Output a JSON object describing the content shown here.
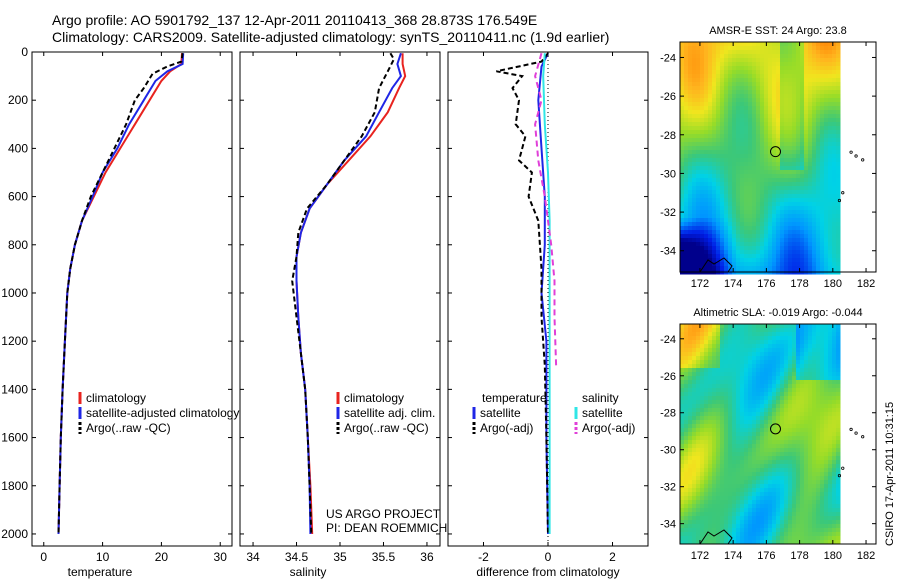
{
  "header": {
    "line1": "Argo profile: AO 5901792_137 12-Apr-2011 20110413_368 28.873S 176.549E",
    "line2": "Climatology: CARS2009. Satellite-adjusted climatology: synTS_20110411.nc (1.9d earlier)"
  },
  "side_text": "CSIRO 17-Apr-2011 10:31:15",
  "colors": {
    "climatology": "#e8231f",
    "satellite": "#1f26e6",
    "argo": "#000000",
    "satellite_salinity": "#2fe6e6",
    "argo_adj_salinity": "#e040d8"
  },
  "chart_data": [
    {
      "id": "temperature",
      "type": "line",
      "xlabel": "temperature",
      "xlim": [
        -2,
        32
      ],
      "ylim": [
        0,
        2050
      ],
      "y_reversed": true,
      "xticks": [
        0,
        10,
        20,
        30
      ],
      "yticks": [
        0,
        200,
        400,
        600,
        800,
        1000,
        1200,
        1400,
        1600,
        1800,
        2000
      ],
      "legend": [
        "climatology",
        "satellite-adjusted climatology",
        "Argo(..raw -QC)"
      ],
      "series": [
        {
          "name": "climatology",
          "color": "#e8231f",
          "dash": "",
          "points": [
            [
              23.5,
              5
            ],
            [
              23.4,
              50
            ],
            [
              21.5,
              80
            ],
            [
              20.0,
              120
            ],
            [
              18.0,
              200
            ],
            [
              15.5,
              300
            ],
            [
              13.0,
              400
            ],
            [
              10.5,
              500
            ],
            [
              8.5,
              600
            ],
            [
              6.5,
              700
            ],
            [
              5.3,
              800
            ],
            [
              4.5,
              900
            ],
            [
              4.0,
              1000
            ],
            [
              3.6,
              1200
            ],
            [
              3.2,
              1400
            ],
            [
              2.9,
              1600
            ],
            [
              2.7,
              1800
            ],
            [
              2.5,
              2000
            ]
          ]
        },
        {
          "name": "satellite-adjusted climatology",
          "color": "#1f26e6",
          "dash": "",
          "points": [
            [
              23.7,
              5
            ],
            [
              23.6,
              50
            ],
            [
              21.0,
              80
            ],
            [
              19.0,
              120
            ],
            [
              17.0,
              200
            ],
            [
              14.5,
              300
            ],
            [
              12.5,
              400
            ],
            [
              10.0,
              500
            ],
            [
              8.3,
              600
            ],
            [
              6.5,
              700
            ],
            [
              5.3,
              800
            ],
            [
              4.5,
              900
            ],
            [
              4.0,
              1000
            ],
            [
              3.6,
              1200
            ],
            [
              3.2,
              1400
            ],
            [
              2.9,
              1600
            ],
            [
              2.7,
              1800
            ],
            [
              2.5,
              2000
            ]
          ]
        },
        {
          "name": "Argo(..raw -QC)",
          "color": "#000000",
          "dash": "5,3",
          "points": [
            [
              23.6,
              5
            ],
            [
              23.4,
              40
            ],
            [
              21.0,
              60
            ],
            [
              18.5,
              90
            ],
            [
              17.0,
              150
            ],
            [
              15.5,
              200
            ],
            [
              14.0,
              300
            ],
            [
              12.0,
              400
            ],
            [
              10.0,
              500
            ],
            [
              8.0,
              600
            ],
            [
              6.5,
              700
            ],
            [
              5.3,
              800
            ],
            [
              4.5,
              900
            ],
            [
              4.0,
              1000
            ],
            [
              3.6,
              1200
            ],
            [
              3.2,
              1400
            ],
            [
              2.9,
              1600
            ],
            [
              2.7,
              1800
            ],
            [
              2.5,
              2000
            ]
          ]
        }
      ]
    },
    {
      "id": "salinity",
      "type": "line",
      "xlabel": "salinity",
      "xlim": [
        33.85,
        36.15
      ],
      "ylim": [
        0,
        2050
      ],
      "y_reversed": true,
      "xticks": [
        34,
        34.5,
        35,
        35.5,
        36
      ],
      "legend": [
        "climatology",
        "satellite adj. clim.",
        "Argo(..raw -QC)"
      ],
      "annotation": [
        "US ARGO PROJECT",
        "PI: DEAN ROEMMICH"
      ],
      "series": [
        {
          "name": "climatology",
          "color": "#e8231f",
          "dash": "",
          "points": [
            [
              35.72,
              5
            ],
            [
              35.72,
              50
            ],
            [
              35.75,
              100
            ],
            [
              35.68,
              150
            ],
            [
              35.55,
              250
            ],
            [
              35.35,
              350
            ],
            [
              35.1,
              450
            ],
            [
              34.85,
              550
            ],
            [
              34.65,
              650
            ],
            [
              34.55,
              750
            ],
            [
              34.5,
              850
            ],
            [
              34.5,
              950
            ],
            [
              34.52,
              1100
            ],
            [
              34.55,
              1250
            ],
            [
              34.6,
              1400
            ],
            [
              34.63,
              1600
            ],
            [
              34.66,
              1800
            ],
            [
              34.68,
              2000
            ]
          ]
        },
        {
          "name": "satellite adj. clim.",
          "color": "#1f26e6",
          "dash": "",
          "points": [
            [
              35.7,
              5
            ],
            [
              35.66,
              50
            ],
            [
              35.7,
              100
            ],
            [
              35.6,
              150
            ],
            [
              35.45,
              250
            ],
            [
              35.3,
              350
            ],
            [
              35.05,
              450
            ],
            [
              34.85,
              550
            ],
            [
              34.65,
              650
            ],
            [
              34.55,
              750
            ],
            [
              34.5,
              850
            ],
            [
              34.5,
              950
            ],
            [
              34.52,
              1100
            ],
            [
              34.55,
              1250
            ],
            [
              34.6,
              1400
            ],
            [
              34.63,
              1600
            ],
            [
              34.65,
              1800
            ],
            [
              34.66,
              2000
            ]
          ]
        },
        {
          "name": "Argo(..raw -QC)",
          "color": "#000000",
          "dash": "5,3",
          "points": [
            [
              35.58,
              5
            ],
            [
              35.62,
              30
            ],
            [
              35.55,
              80
            ],
            [
              35.45,
              150
            ],
            [
              35.4,
              250
            ],
            [
              35.25,
              350
            ],
            [
              35.05,
              450
            ],
            [
              34.85,
              550
            ],
            [
              34.62,
              650
            ],
            [
              34.52,
              750
            ],
            [
              34.5,
              850
            ],
            [
              34.45,
              950
            ],
            [
              34.5,
              1100
            ],
            [
              34.55,
              1250
            ],
            [
              34.6,
              1400
            ],
            [
              34.63,
              1600
            ],
            [
              34.65,
              1800
            ],
            [
              34.67,
              2000
            ]
          ]
        }
      ]
    },
    {
      "id": "difference",
      "type": "line",
      "xlabel": "difference from climatology",
      "xlim": [
        -3.1,
        3.1
      ],
      "ylim": [
        0,
        2050
      ],
      "y_reversed": true,
      "xticks": [
        -2,
        0,
        2
      ],
      "legend_headers": [
        "temperature",
        "salinity"
      ],
      "legend": [
        "satellite",
        "Argo(-adj)",
        "satellite",
        "Argo(-adj)"
      ],
      "series": [
        {
          "name": "temperature satellite",
          "color": "#1f26e6",
          "dash": "",
          "points": [
            [
              0,
              5
            ],
            [
              -0.2,
              60
            ],
            [
              -0.3,
              200
            ],
            [
              -0.2,
              400
            ],
            [
              -0.1,
              600
            ],
            [
              -0.1,
              800
            ],
            [
              -0.2,
              1000
            ],
            [
              -0.05,
              1200
            ],
            [
              -0.05,
              1600
            ],
            [
              0,
              2000
            ]
          ]
        },
        {
          "name": "temperature Argo(-adj)",
          "color": "#000000",
          "dash": "5,3",
          "points": [
            [
              0,
              5
            ],
            [
              -0.2,
              40
            ],
            [
              -1.6,
              80
            ],
            [
              -0.8,
              100
            ],
            [
              -1.1,
              150
            ],
            [
              -0.9,
              200
            ],
            [
              -1.0,
              300
            ],
            [
              -0.7,
              350
            ],
            [
              -0.9,
              450
            ],
            [
              -0.5,
              500
            ],
            [
              -0.6,
              600
            ],
            [
              -0.3,
              700
            ],
            [
              -0.2,
              900
            ],
            [
              -0.2,
              1100
            ],
            [
              -0.1,
              1300
            ],
            [
              -0.05,
              1600
            ],
            [
              0,
              2000
            ]
          ]
        },
        {
          "name": "salinity satellite",
          "color": "#2fe6e6",
          "dash": "",
          "points": [
            [
              -0.1,
              5
            ],
            [
              -0.15,
              100
            ],
            [
              -0.1,
              300
            ],
            [
              0,
              500
            ],
            [
              0.05,
              700
            ],
            [
              0.05,
              1000
            ],
            [
              0.05,
              1400
            ],
            [
              0.05,
              2000
            ]
          ]
        },
        {
          "name": "salinity Argo(-adj)",
          "color": "#e040d8",
          "dash": "6,4",
          "points": [
            [
              -0.2,
              5
            ],
            [
              -0.4,
              100
            ],
            [
              -0.2,
              200
            ],
            [
              -0.4,
              300
            ],
            [
              -0.3,
              450
            ],
            [
              -0.1,
              600
            ],
            [
              0.1,
              800
            ],
            [
              0.2,
              950
            ],
            [
              0.2,
              1100
            ],
            [
              0.25,
              1300
            ]
          ]
        }
      ]
    },
    {
      "id": "sst_map",
      "type": "heatmap",
      "title": "AMSR-E SST: 24 Argo: 23.8",
      "xticks": [
        172,
        174,
        176,
        178,
        180,
        182
      ],
      "yticks": [
        -24,
        -26,
        -28,
        -30,
        -32,
        -34
      ],
      "xlim": [
        170.8,
        182.6
      ],
      "ylim": [
        -35.1,
        -23.2
      ],
      "marker": [
        176.549,
        -28.873
      ]
    },
    {
      "id": "sla_map",
      "type": "heatmap",
      "title": "Altimetric SLA: -0.019 Argo: -0.044",
      "xticks": [
        172,
        174,
        176,
        178,
        180,
        182
      ],
      "yticks": [
        -24,
        -26,
        -28,
        -30,
        -32,
        -34
      ],
      "xlim": [
        170.8,
        182.6
      ],
      "ylim": [
        -35.1,
        -23.2
      ],
      "marker": [
        176.549,
        -28.873
      ]
    }
  ]
}
